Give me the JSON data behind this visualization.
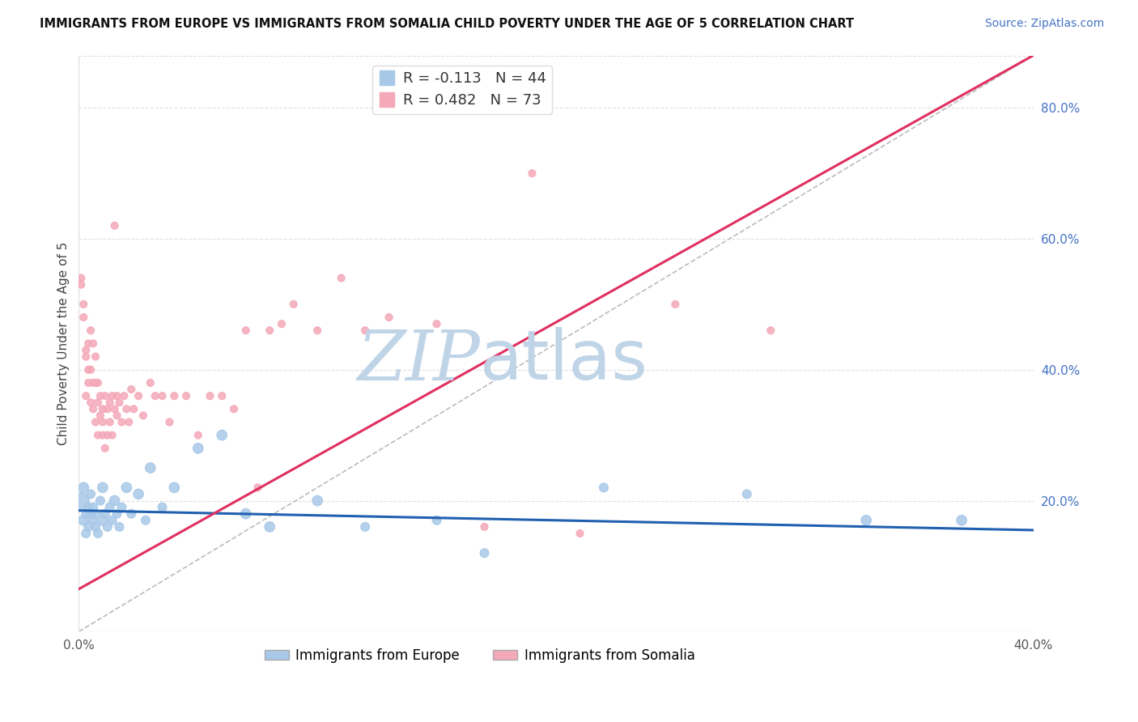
{
  "title": "IMMIGRANTS FROM EUROPE VS IMMIGRANTS FROM SOMALIA CHILD POVERTY UNDER THE AGE OF 5 CORRELATION CHART",
  "source": "Source: ZipAtlas.com",
  "ylabel": "Child Poverty Under the Age of 5",
  "xlim": [
    0.0,
    0.4
  ],
  "ylim": [
    0.0,
    0.88
  ],
  "right_yticks": [
    0.2,
    0.4,
    0.6,
    0.8
  ],
  "right_yticklabels": [
    "20.0%",
    "40.0%",
    "60.0%",
    "80.0%"
  ],
  "xticks": [
    0.0,
    0.05,
    0.1,
    0.15,
    0.2,
    0.25,
    0.3,
    0.35,
    0.4
  ],
  "xticklabels": [
    "0.0%",
    "",
    "",
    "",
    "",
    "",
    "",
    "",
    "40.0%"
  ],
  "europe_R": -0.113,
  "europe_N": 44,
  "somalia_R": 0.482,
  "somalia_N": 73,
  "europe_color": "#a8c8e8",
  "somalia_color": "#f4a8b8",
  "europe_line_color": "#2060b0",
  "somalia_line_color": "#e03060",
  "ref_line_color": "#bbbbbb",
  "watermark_zip": "ZIP",
  "watermark_atlas": "atlas",
  "watermark_color_zip": "#c0d4e8",
  "watermark_color_atlas": "#c0d4e8",
  "legend_europe": "Immigrants from Europe",
  "legend_somalia": "Immigrants from Somalia",
  "europe_trend_x": [
    0.0,
    0.4
  ],
  "europe_trend_y": [
    0.185,
    0.155
  ],
  "somalia_trend_x": [
    0.0,
    0.4
  ],
  "somalia_trend_y": [
    0.065,
    0.88
  ],
  "ref_line_x": [
    0.0,
    0.4
  ],
  "ref_line_y": [
    0.0,
    0.88
  ],
  "europe_x": [
    0.001,
    0.002,
    0.002,
    0.003,
    0.003,
    0.004,
    0.004,
    0.005,
    0.005,
    0.006,
    0.006,
    0.007,
    0.007,
    0.008,
    0.009,
    0.01,
    0.01,
    0.011,
    0.012,
    0.013,
    0.014,
    0.015,
    0.016,
    0.017,
    0.018,
    0.02,
    0.022,
    0.025,
    0.028,
    0.03,
    0.035,
    0.04,
    0.05,
    0.06,
    0.07,
    0.08,
    0.1,
    0.12,
    0.15,
    0.17,
    0.22,
    0.28,
    0.33,
    0.37
  ],
  "europe_y": [
    0.2,
    0.17,
    0.22,
    0.18,
    0.15,
    0.19,
    0.16,
    0.18,
    0.21,
    0.17,
    0.19,
    0.16,
    0.18,
    0.15,
    0.2,
    0.17,
    0.22,
    0.18,
    0.16,
    0.19,
    0.17,
    0.2,
    0.18,
    0.16,
    0.19,
    0.22,
    0.18,
    0.21,
    0.17,
    0.25,
    0.19,
    0.22,
    0.28,
    0.3,
    0.18,
    0.16,
    0.2,
    0.16,
    0.17,
    0.12,
    0.22,
    0.21,
    0.17,
    0.17
  ],
  "europe_size": [
    200,
    80,
    80,
    60,
    60,
    60,
    60,
    60,
    60,
    60,
    60,
    60,
    60,
    60,
    60,
    80,
    80,
    60,
    60,
    60,
    60,
    80,
    60,
    60,
    60,
    80,
    60,
    80,
    60,
    80,
    60,
    80,
    80,
    80,
    80,
    80,
    80,
    60,
    60,
    60,
    60,
    60,
    80,
    80
  ],
  "somalia_x": [
    0.001,
    0.001,
    0.002,
    0.002,
    0.003,
    0.003,
    0.003,
    0.004,
    0.004,
    0.004,
    0.005,
    0.005,
    0.005,
    0.006,
    0.006,
    0.006,
    0.007,
    0.007,
    0.007,
    0.008,
    0.008,
    0.008,
    0.009,
    0.009,
    0.01,
    0.01,
    0.01,
    0.011,
    0.011,
    0.012,
    0.012,
    0.013,
    0.013,
    0.014,
    0.014,
    0.015,
    0.015,
    0.016,
    0.016,
    0.017,
    0.018,
    0.019,
    0.02,
    0.021,
    0.022,
    0.023,
    0.025,
    0.027,
    0.03,
    0.032,
    0.035,
    0.038,
    0.04,
    0.045,
    0.05,
    0.055,
    0.06,
    0.065,
    0.07,
    0.075,
    0.08,
    0.085,
    0.09,
    0.1,
    0.11,
    0.12,
    0.13,
    0.15,
    0.17,
    0.19,
    0.21,
    0.25,
    0.29
  ],
  "somalia_y": [
    0.53,
    0.54,
    0.48,
    0.5,
    0.43,
    0.42,
    0.36,
    0.44,
    0.4,
    0.38,
    0.46,
    0.4,
    0.35,
    0.44,
    0.38,
    0.34,
    0.42,
    0.38,
    0.32,
    0.38,
    0.35,
    0.3,
    0.36,
    0.33,
    0.34,
    0.32,
    0.3,
    0.36,
    0.28,
    0.34,
    0.3,
    0.32,
    0.35,
    0.36,
    0.3,
    0.34,
    0.62,
    0.33,
    0.36,
    0.35,
    0.32,
    0.36,
    0.34,
    0.32,
    0.37,
    0.34,
    0.36,
    0.33,
    0.38,
    0.36,
    0.36,
    0.32,
    0.36,
    0.36,
    0.3,
    0.36,
    0.36,
    0.34,
    0.46,
    0.22,
    0.46,
    0.47,
    0.5,
    0.46,
    0.54,
    0.46,
    0.48,
    0.47,
    0.16,
    0.7,
    0.15,
    0.5,
    0.46
  ],
  "somalia_size": [
    40,
    40,
    40,
    40,
    40,
    40,
    40,
    40,
    40,
    40,
    40,
    40,
    40,
    40,
    40,
    40,
    40,
    40,
    40,
    40,
    40,
    40,
    40,
    40,
    40,
    40,
    40,
    40,
    40,
    40,
    40,
    40,
    40,
    40,
    40,
    40,
    40,
    40,
    40,
    40,
    40,
    40,
    40,
    40,
    40,
    40,
    40,
    40,
    40,
    40,
    40,
    40,
    40,
    40,
    40,
    40,
    40,
    40,
    40,
    40,
    40,
    40,
    40,
    40,
    40,
    40,
    40,
    40,
    40,
    40,
    40,
    40,
    40
  ]
}
